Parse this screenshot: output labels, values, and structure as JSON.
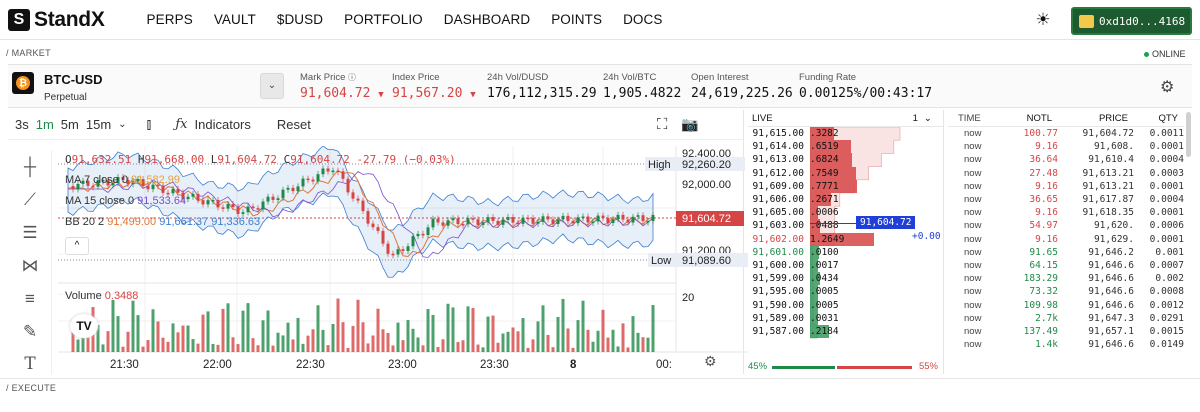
{
  "brand": {
    "name": "StandX",
    "logo_glyph": "S"
  },
  "nav": [
    "PERPS",
    "VAULT",
    "$DUSD",
    "PORTFOLIO",
    "DASHBOARD",
    "POINTS",
    "DOCS"
  ],
  "wallet": "0xd1d0...4168",
  "labels": {
    "market": "/ MARKET",
    "online": "ONLINE",
    "execute": "/ EXECUTE"
  },
  "market": {
    "symbol": "BTC-USD",
    "type": "Perpetual",
    "stats": [
      {
        "label": "Mark Price",
        "value": "91,604.72",
        "trend": "down",
        "info": true
      },
      {
        "label": "Index Price",
        "value": "91,567.20",
        "trend": "down",
        "info": false
      },
      {
        "label": "24h Vol/DUSD",
        "value": "176,112,315.29"
      },
      {
        "label": "24h Vol/BTC",
        "value": "1,905.4822"
      },
      {
        "label": "Open Interest",
        "value": "24,619,225.26"
      },
      {
        "label": "Funding Rate",
        "value": "0.00125%/00:43:17"
      }
    ]
  },
  "chart": {
    "timeframes": [
      "3s",
      "1m",
      "5m",
      "15m"
    ],
    "active_timeframe": "1m",
    "indicators_label": "Indicators",
    "reset_label": "Reset",
    "ohlc": {
      "o": "91,632.51",
      "h": "91,668.00",
      "l": "91,604.72",
      "c": "91,604.72",
      "chg": "-27.79 (−0.03%)"
    },
    "ma7": {
      "label": "MA 7 close 0",
      "value": "91,582.99"
    },
    "ma15": {
      "label": "MA 15 close 0",
      "value": "91,533.64"
    },
    "bb": {
      "label": "BB 20 2",
      "v1": "91,499.00",
      "v2": "91,661.37",
      "v3": "91,336.63"
    },
    "volume": {
      "label": "Volume",
      "value": "0.3488"
    },
    "price_axis": [
      "92,400.00",
      "92,000.00",
      "91,200.00"
    ],
    "high_label": "High",
    "high_value": "92,260.20",
    "low_label": "Low",
    "low_value": "91,089.60",
    "last_price": "91,604.72",
    "vol_axis": "20",
    "time_axis": [
      "21:30",
      "22:00",
      "22:30",
      "23:00",
      "23:30",
      "8",
      "00:"
    ]
  },
  "orderbook": {
    "title": "LIVE",
    "precision": "1",
    "asks": [
      {
        "price": "91,615.00",
        "qty": ".3282"
      },
      {
        "price": "91,614.00",
        "qty": ".6519"
      },
      {
        "price": "91,613.00",
        "qty": ".6824"
      },
      {
        "price": "91,612.00",
        "qty": ".7549"
      },
      {
        "price": "91,609.00",
        "qty": ".7771"
      },
      {
        "price": "91,606.00",
        "qty": ".2671"
      },
      {
        "price": "91,605.00",
        "qty": ".0006"
      },
      {
        "price": "91,603.00",
        "qty": ".0488"
      },
      {
        "price": "91,602.00",
        "qty": "1.2649"
      }
    ],
    "bids": [
      {
        "price": "91,601.00",
        "qty": ".0100"
      },
      {
        "price": "91,600.00",
        "qty": ".0017"
      },
      {
        "price": "91,599.00",
        "qty": ".0434"
      },
      {
        "price": "91,595.00",
        "qty": ".0005"
      },
      {
        "price": "91,590.00",
        "qty": ".0005"
      },
      {
        "price": "91,589.00",
        "qty": ".0031"
      },
      {
        "price": "91,587.00",
        "qty": ".2184"
      }
    ],
    "mark_tag": "91,604.72",
    "mark_change": "+0.00",
    "ratio_buy": "45%",
    "ratio_sell": "55%"
  },
  "trades": {
    "headers": [
      "TIME",
      "NOTL",
      "PRICE",
      "QTY"
    ],
    "rows": [
      {
        "time": "now",
        "notl": "100.77",
        "price": "91,604.72",
        "qty": "0.0011",
        "side": "sell"
      },
      {
        "time": "now",
        "notl": "9.16",
        "price": "91,608.",
        "qty": "0.0001",
        "side": "sell"
      },
      {
        "time": "now",
        "notl": "36.64",
        "price": "91,610.4",
        "qty": "0.0004",
        "side": "sell"
      },
      {
        "time": "now",
        "notl": "27.48",
        "price": "91,613.21",
        "qty": "0.0003",
        "side": "sell"
      },
      {
        "time": "now",
        "notl": "9.16",
        "price": "91,613.21",
        "qty": "0.0001",
        "side": "sell"
      },
      {
        "time": "now",
        "notl": "36.65",
        "price": "91,617.87",
        "qty": "0.0004",
        "side": "sell"
      },
      {
        "time": "now",
        "notl": "9.16",
        "price": "91,618.35",
        "qty": "0.0001",
        "side": "sell"
      },
      {
        "time": "now",
        "notl": "54.97",
        "price": "91,620.",
        "qty": "0.0006",
        "side": "sell"
      },
      {
        "time": "now",
        "notl": "9.16",
        "price": "91,629.",
        "qty": "0.0001",
        "side": "sell"
      },
      {
        "time": "now",
        "notl": "91.65",
        "price": "91,646.2",
        "qty": "0.001",
        "side": "buy"
      },
      {
        "time": "now",
        "notl": "64.15",
        "price": "91,646.6",
        "qty": "0.0007",
        "side": "buy"
      },
      {
        "time": "now",
        "notl": "183.29",
        "price": "91,646.6",
        "qty": "0.002",
        "side": "buy"
      },
      {
        "time": "now",
        "notl": "73.32",
        "price": "91,646.6",
        "qty": "0.0008",
        "side": "buy"
      },
      {
        "time": "now",
        "notl": "109.98",
        "price": "91,646.6",
        "qty": "0.0012",
        "side": "buy"
      },
      {
        "time": "now",
        "notl": "2.7k",
        "price": "91,647.3",
        "qty": "0.0291",
        "side": "buy"
      },
      {
        "time": "now",
        "notl": "137.49",
        "price": "91,657.1",
        "qty": "0.0015",
        "side": "buy"
      },
      {
        "time": "now",
        "notl": "1.4k",
        "price": "91,646.6",
        "qty": "0.0149",
        "side": "buy"
      }
    ]
  },
  "colors": {
    "up": "#1f8a47",
    "down": "#d64545",
    "accent": "#1e5a2f",
    "mark": "#1f3fd6"
  }
}
